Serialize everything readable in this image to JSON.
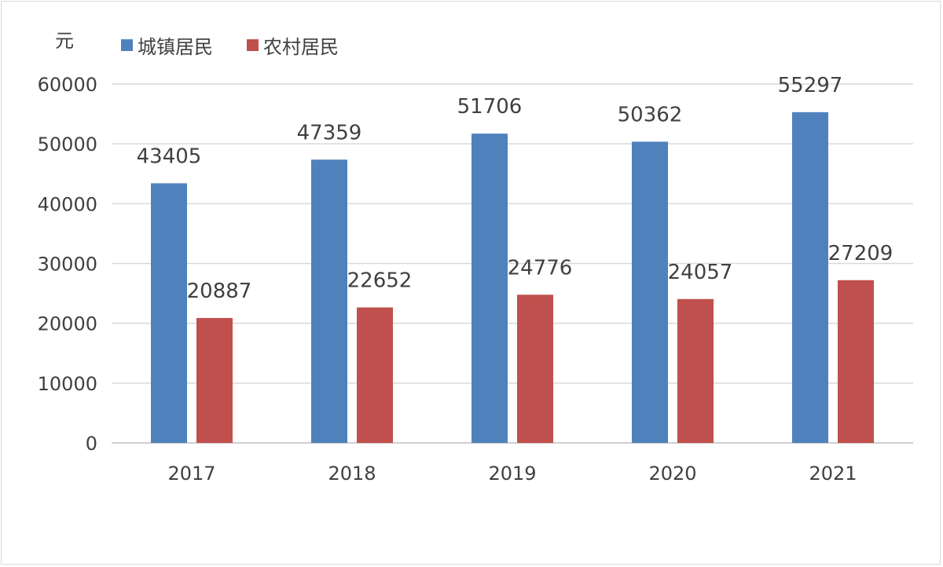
{
  "chart_data": {
    "type": "bar",
    "unit_label": "元",
    "categories": [
      "2017",
      "2018",
      "2019",
      "2020",
      "2021"
    ],
    "series": [
      {
        "name": "城镇居民",
        "color": "#4f81bd",
        "values": [
          43405,
          47359,
          51706,
          50362,
          55297
        ]
      },
      {
        "name": "农村居民",
        "color": "#c0504d",
        "values": [
          20887,
          22652,
          24776,
          24057,
          27209
        ]
      }
    ],
    "ylim": [
      0,
      60000
    ],
    "yticks": [
      0,
      10000,
      20000,
      30000,
      40000,
      50000,
      60000
    ],
    "grid": true,
    "legend_position": "top-left"
  }
}
